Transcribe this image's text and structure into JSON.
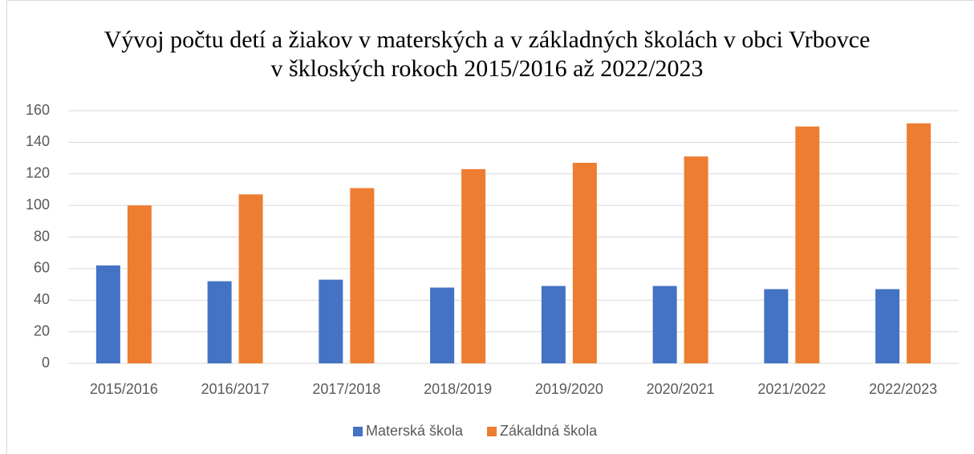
{
  "chart_data": {
    "type": "bar",
    "title": "Vývoj počtu detí a žiakov v materských a v základných školách v obci Vrbovce v škloských rokoch 2015/2016 až 2022/2023",
    "categories": [
      "2015/2016",
      "2016/2017",
      "2017/2018",
      "2018/2019",
      "2019/2020",
      "2020/2021",
      "2021/2022",
      "2022/2023"
    ],
    "series": [
      {
        "name": "Materská škola",
        "color": "#4472c4",
        "values": [
          62,
          52,
          53,
          48,
          49,
          49,
          47,
          47
        ]
      },
      {
        "name": "Zákaldná škola",
        "color": "#ed7d31",
        "values": [
          100,
          107,
          111,
          123,
          127,
          131,
          150,
          152
        ]
      }
    ],
    "ylim": [
      0,
      160
    ],
    "yticks": [
      0,
      20,
      40,
      60,
      80,
      100,
      120,
      140,
      160
    ],
    "grid": true,
    "legend": "bottom"
  }
}
